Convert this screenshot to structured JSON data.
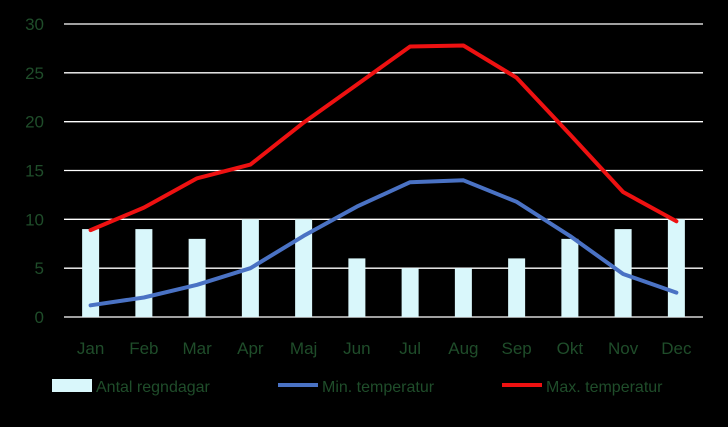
{
  "chart_data": {
    "type": "bar+line",
    "categories": [
      "Jan",
      "Feb",
      "Mar",
      "Apr",
      "Maj",
      "Jun",
      "Jul",
      "Aug",
      "Sep",
      "Okt",
      "Nov",
      "Dec"
    ],
    "y_ticks": [
      "0",
      "5",
      "10",
      "15",
      "20",
      "25",
      "30"
    ],
    "ylim": [
      0,
      30
    ],
    "grid": true,
    "legend_position": "bottom",
    "series": [
      {
        "name": "Antal regndagar",
        "type": "bar",
        "color": "#d9f7fb",
        "values": [
          9,
          9,
          8,
          10,
          10,
          6,
          5,
          5,
          6,
          8,
          9,
          10
        ]
      },
      {
        "name": "Min. temperatur",
        "type": "line",
        "color": "#4a72c4",
        "values": [
          1.2,
          2.0,
          3.3,
          5.0,
          8.3,
          11.3,
          13.8,
          14.0,
          11.8,
          8.3,
          4.4,
          2.5
        ]
      },
      {
        "name": "Max. temperatur",
        "type": "line",
        "color": "#ee1111",
        "values": [
          8.9,
          11.2,
          14.2,
          15.6,
          19.9,
          23.8,
          27.7,
          27.8,
          24.5,
          18.7,
          12.8,
          9.8
        ]
      }
    ],
    "colors": {
      "background": "#000000",
      "grid": "#ffffff",
      "text": "#1f4d2a"
    }
  }
}
